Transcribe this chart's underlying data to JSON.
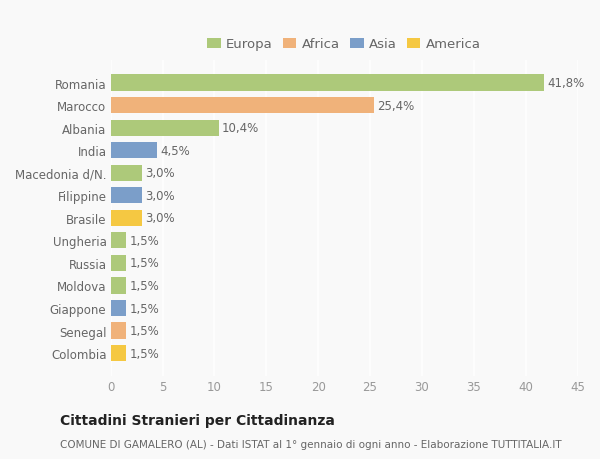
{
  "categories": [
    "Romania",
    "Marocco",
    "Albania",
    "India",
    "Macedonia d/N.",
    "Filippine",
    "Brasile",
    "Ungheria",
    "Russia",
    "Moldova",
    "Giappone",
    "Senegal",
    "Colombia"
  ],
  "values": [
    41.8,
    25.4,
    10.4,
    4.5,
    3.0,
    3.0,
    3.0,
    1.5,
    1.5,
    1.5,
    1.5,
    1.5,
    1.5
  ],
  "labels": [
    "41,8%",
    "25,4%",
    "10,4%",
    "4,5%",
    "3,0%",
    "3,0%",
    "3,0%",
    "1,5%",
    "1,5%",
    "1,5%",
    "1,5%",
    "1,5%",
    "1,5%"
  ],
  "colors": [
    "#adc97a",
    "#f0b27a",
    "#adc97a",
    "#7b9ec9",
    "#adc97a",
    "#7b9ec9",
    "#f5c842",
    "#adc97a",
    "#adc97a",
    "#adc97a",
    "#7b9ec9",
    "#f0b27a",
    "#f5c842"
  ],
  "legend_labels": [
    "Europa",
    "Africa",
    "Asia",
    "America"
  ],
  "legend_colors": [
    "#adc97a",
    "#f0b27a",
    "#7b9ec9",
    "#f5c842"
  ],
  "xlim": [
    0,
    45
  ],
  "xticks": [
    0,
    5,
    10,
    15,
    20,
    25,
    30,
    35,
    40,
    45
  ],
  "title": "Cittadini Stranieri per Cittadinanza",
  "subtitle": "COMUNE DI GAMALERO (AL) - Dati ISTAT al 1° gennaio di ogni anno - Elaborazione TUTTITALIA.IT",
  "background_color": "#f9f9f9",
  "bar_height": 0.72,
  "grid_color": "#ffffff",
  "label_fontsize": 8.5,
  "tick_fontsize": 8.5,
  "title_fontsize": 10,
  "subtitle_fontsize": 7.5,
  "legend_fontsize": 9.5
}
